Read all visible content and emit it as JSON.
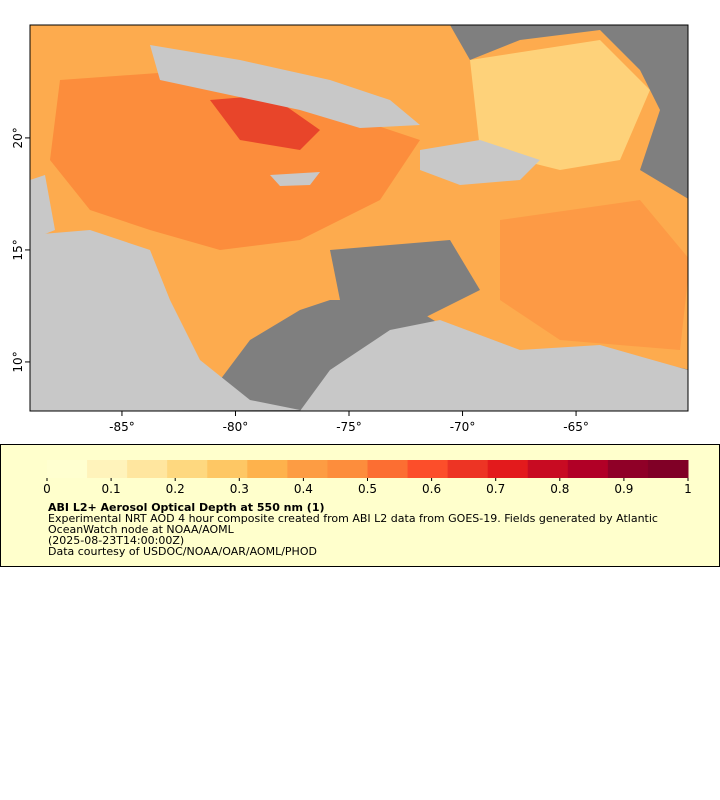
{
  "map": {
    "xlim": [
      -89.05,
      -60.07
    ],
    "ylim": [
      7.81,
      25.04
    ],
    "xticks": [
      {
        "value": -85,
        "label": "-85°"
      },
      {
        "value": -80,
        "label": "-80°"
      },
      {
        "value": -75,
        "label": "-75°"
      },
      {
        "value": -70,
        "label": "-70°"
      },
      {
        "value": -65,
        "label": "-65°"
      }
    ],
    "yticks": [
      {
        "value": 10,
        "label": "10°"
      },
      {
        "value": 15,
        "label": "15°"
      },
      {
        "value": 20,
        "label": "20°"
      }
    ]
  },
  "colorbar": {
    "range": [
      0,
      1
    ],
    "ticks": [
      0,
      0.1,
      0.2,
      0.3,
      0.4,
      0.5,
      0.6,
      0.7,
      0.8,
      0.9,
      1
    ],
    "colors": [
      "#ffffd0",
      "#fff3bb",
      "#ffe69f",
      "#fed87f",
      "#fec764",
      "#feb24c",
      "#fd9c43",
      "#fd8d3c",
      "#fc6e32",
      "#fc4e2a",
      "#ed3424",
      "#e31a1c",
      "#c80b22",
      "#b10026",
      "#8f0027",
      "#800026"
    ]
  },
  "legend": {
    "title": "ABI L2+ Aerosol Optical Depth at 550 nm (1)",
    "lines": [
      "Experimental NRT AOD 4 hour composite created from ABI L2 data from GOES-19. Fields generated by Atlantic",
      "OceanWatch node at NOAA/AOML",
      "(2025-08-23T14:00:00Z)",
      "Data courtesy of USDOC/NOAA/OAR/AOML/PHOD"
    ]
  }
}
